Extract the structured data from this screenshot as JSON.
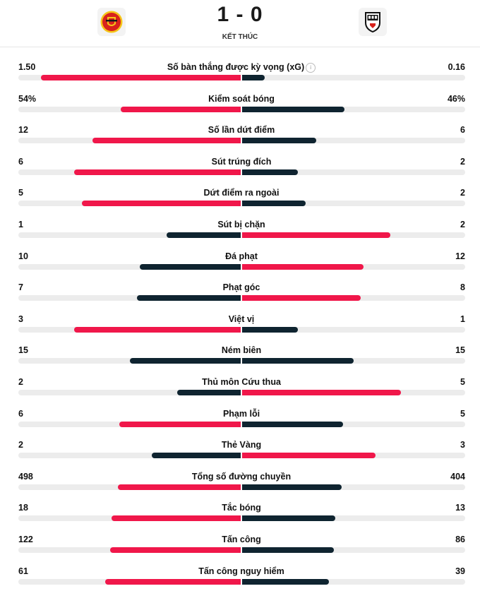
{
  "match": {
    "home_score": "1",
    "separator": "-",
    "away_score": "0",
    "status": "KẾT THÚC"
  },
  "colors": {
    "leader": "#f0174a",
    "trailer": "#0f2430",
    "track": "#ececec",
    "home_crest_red": "#d8221c",
    "home_crest_gold": "#f5c518"
  },
  "icons": {
    "home_crest": "manchester-united-crest",
    "away_crest": "fulham-crest",
    "info": "info-icon"
  },
  "stats": [
    {
      "label": "Số bàn thắng được kỳ vọng (xG)",
      "home": "1.50",
      "away": "0.16",
      "info": true,
      "home_ratio": 0.9,
      "away_ratio": 0.1
    },
    {
      "label": "Kiểm soát bóng",
      "home": "54%",
      "away": "46%",
      "home_ratio": 0.54,
      "away_ratio": 0.46
    },
    {
      "label": "Số lần dứt điểm",
      "home": "12",
      "away": "6",
      "home_ratio": 0.667,
      "away_ratio": 0.333
    },
    {
      "label": "Sút trúng đích",
      "home": "6",
      "away": "2",
      "home_ratio": 0.75,
      "away_ratio": 0.25
    },
    {
      "label": "Dứt điểm ra ngoài",
      "home": "5",
      "away": "2",
      "home_ratio": 0.714,
      "away_ratio": 0.286
    },
    {
      "label": "Sút bị chặn",
      "home": "1",
      "away": "2",
      "home_ratio": 0.333,
      "away_ratio": 0.667
    },
    {
      "label": "Đá phạt",
      "home": "10",
      "away": "12",
      "home_ratio": 0.455,
      "away_ratio": 0.545
    },
    {
      "label": "Phạt góc",
      "home": "7",
      "away": "8",
      "home_ratio": 0.467,
      "away_ratio": 0.533
    },
    {
      "label": "Việt vị",
      "home": "3",
      "away": "1",
      "home_ratio": 0.75,
      "away_ratio": 0.25
    },
    {
      "label": "Ném biên",
      "home": "15",
      "away": "15",
      "home_ratio": 0.5,
      "away_ratio": 0.5
    },
    {
      "label": "Thủ môn Cứu thua",
      "home": "2",
      "away": "5",
      "home_ratio": 0.286,
      "away_ratio": 0.714
    },
    {
      "label": "Phạm lỗi",
      "home": "6",
      "away": "5",
      "home_ratio": 0.545,
      "away_ratio": 0.455
    },
    {
      "label": "Thẻ Vàng",
      "home": "2",
      "away": "3",
      "home_ratio": 0.4,
      "away_ratio": 0.6
    },
    {
      "label": "Tổng số đường chuyền",
      "home": "498",
      "away": "404",
      "home_ratio": 0.552,
      "away_ratio": 0.448
    },
    {
      "label": "Tắc bóng",
      "home": "18",
      "away": "13",
      "home_ratio": 0.581,
      "away_ratio": 0.419
    },
    {
      "label": "Tấn công",
      "home": "122",
      "away": "86",
      "home_ratio": 0.587,
      "away_ratio": 0.413
    },
    {
      "label": "Tấn công nguy hiểm",
      "home": "61",
      "away": "39",
      "home_ratio": 0.61,
      "away_ratio": 0.39
    }
  ]
}
